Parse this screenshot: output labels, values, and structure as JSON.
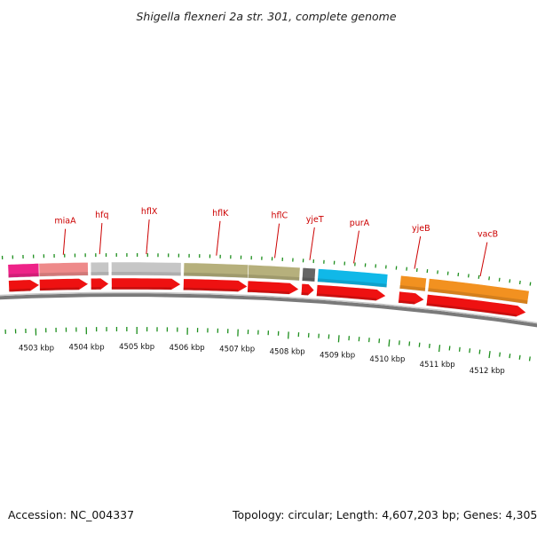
{
  "title": "Shigella flexneri 2a str. 301, complete genome",
  "footer": {
    "accession": "Accession: NC_004337",
    "summary": "Topology: circular; Length: 4,607,203 bp; Genes: 4,305"
  },
  "genes": [
    {
      "name": "",
      "start": 4502.5,
      "end": 4503.1,
      "color": "#ee2288"
    },
    {
      "name": "miaA",
      "start": 4503.1,
      "end": 4504.05,
      "color": "#ee8a8a"
    },
    {
      "name": "hfq",
      "start": 4504.1,
      "end": 4504.45,
      "color": "#c6c6c6"
    },
    {
      "name": "hflX",
      "start": 4504.5,
      "end": 4505.85,
      "color": "#c6c6c6"
    },
    {
      "name": "hflK",
      "start": 4505.9,
      "end": 4507.15,
      "color": "#b6b07c"
    },
    {
      "name": "hflC",
      "start": 4507.15,
      "end": 4508.15,
      "color": "#b6b07c"
    },
    {
      "name": "yjeT",
      "start": 4508.2,
      "end": 4508.45,
      "color": "#666666"
    },
    {
      "name": "purA",
      "start": 4508.5,
      "end": 4509.85,
      "color": "#10b8e8"
    },
    {
      "name": "yjeB",
      "start": 4510.1,
      "end": 4510.6,
      "color": "#f29120"
    },
    {
      "name": "vacB",
      "start": 4510.65,
      "end": 4512.6,
      "color": "#f29120"
    }
  ],
  "kbp_ticks": [
    {
      "pos": 4503,
      "label": "4503 kbp"
    },
    {
      "pos": 4504,
      "label": "4504 kbp"
    },
    {
      "pos": 4505,
      "label": "4505 kbp"
    },
    {
      "pos": 4506,
      "label": "4506 kbp"
    },
    {
      "pos": 4507,
      "label": "4507 kbp"
    },
    {
      "pos": 4508,
      "label": "4508 kbp"
    },
    {
      "pos": 4509,
      "label": "4509 kbp"
    },
    {
      "pos": 4510,
      "label": "4510 kbp"
    },
    {
      "pos": 4511,
      "label": "4511 kbp"
    },
    {
      "pos": 4512,
      "label": "4512 kbp"
    }
  ],
  "colors": {
    "cds": "#ee1111",
    "backbone": "#7a7a7a",
    "tick": "#1e8f1e",
    "label": "#cc0000"
  }
}
